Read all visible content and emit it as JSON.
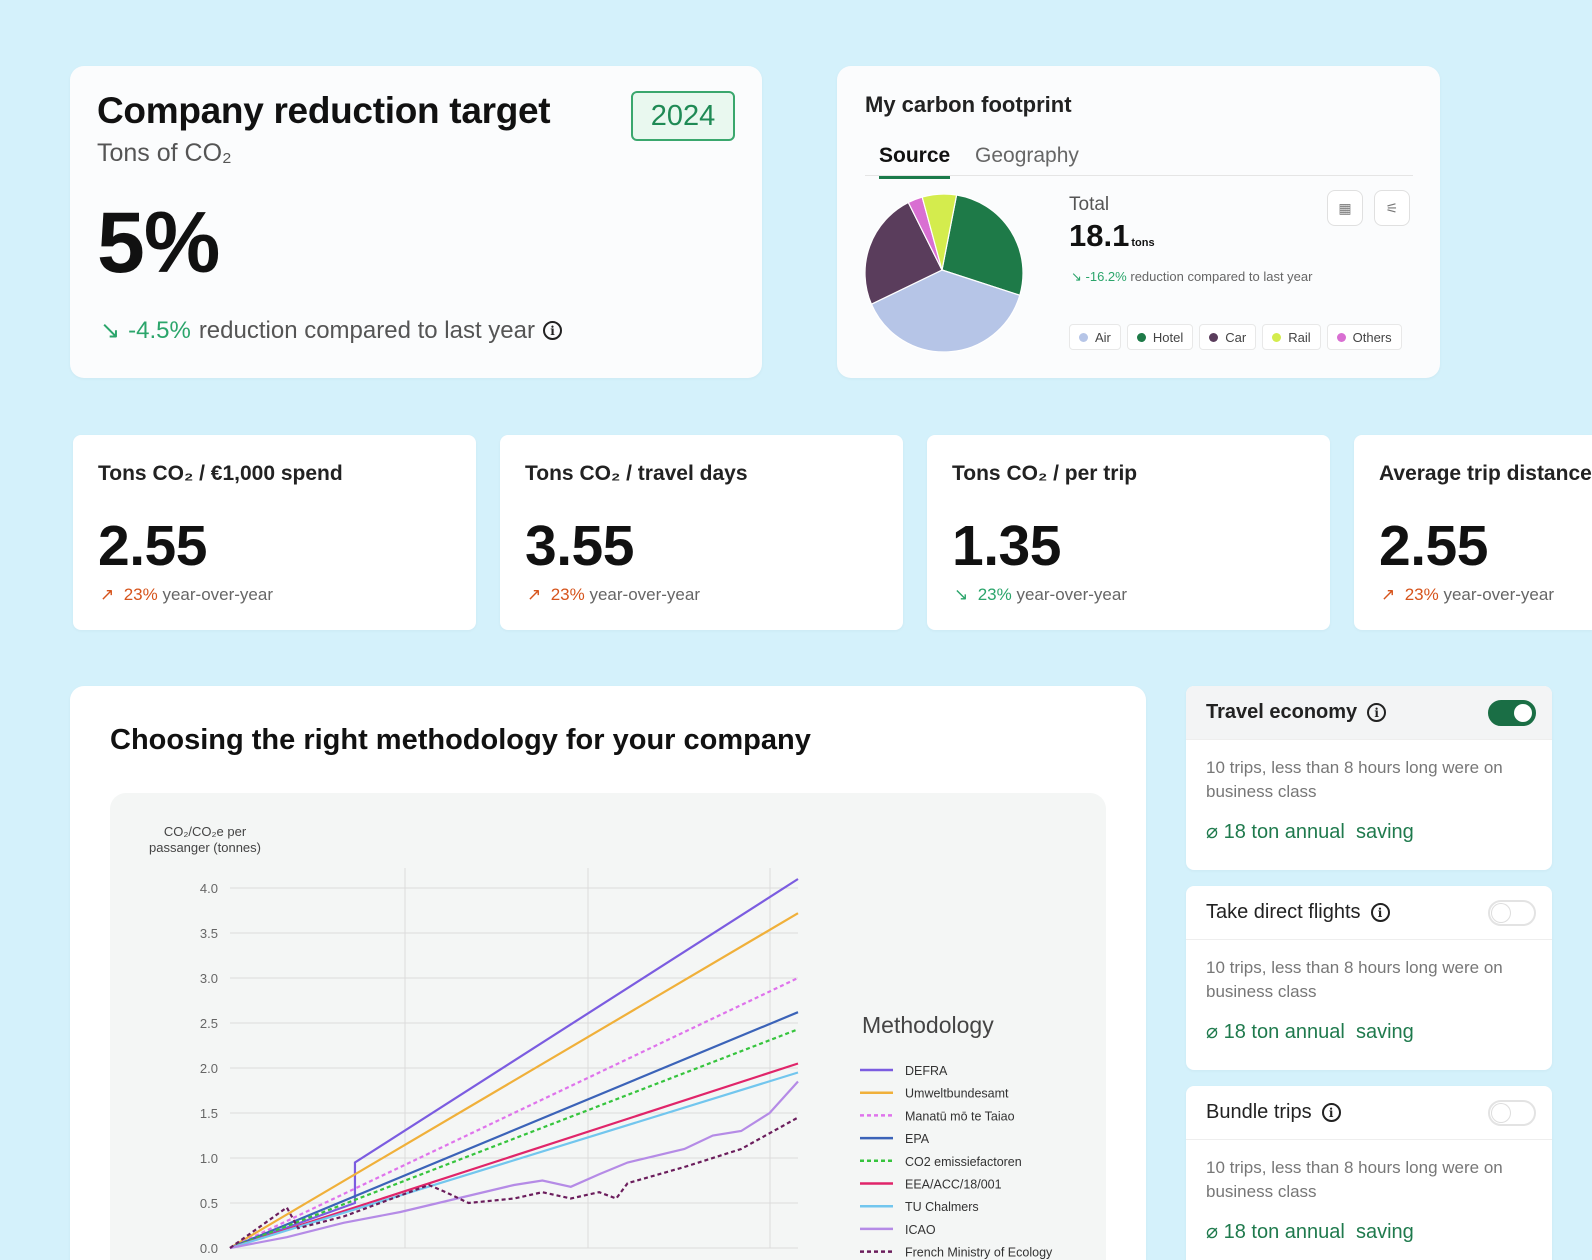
{
  "target": {
    "title": "Company reduction target",
    "subtitle": "Tons of CO₂",
    "year": "2024",
    "value": "5%",
    "delta_arrow": "↘",
    "delta_value": "-4.5%",
    "delta_text": "reduction compared to last year",
    "info_icon": "i"
  },
  "footprint": {
    "title": "My carbon footprint",
    "tabs": [
      "Source",
      "Geography"
    ],
    "total_label": "Total",
    "total_value": "18.1",
    "total_unit": "tons",
    "delta_arrow": "↘",
    "delta_value": "-16.2%",
    "delta_text": "reduction compared to last year",
    "calendar_icon": "▦",
    "filter_icon": "⚟",
    "slices": [
      {
        "name": "Air",
        "value": 39,
        "color": "#b6c5e7"
      },
      {
        "name": "Hotel",
        "value": 27,
        "color": "#1e7a48"
      },
      {
        "name": "Car",
        "value": 24,
        "color": "#5a3d5c"
      },
      {
        "name": "Rail",
        "value": 7,
        "color": "#d4ec4d"
      },
      {
        "name": "Others",
        "value": 3,
        "color": "#d96fd2"
      }
    ]
  },
  "metrics": [
    {
      "title": "Tons CO₂ / €1,000 spend",
      "value": "2.55",
      "arrow": "↗",
      "pct": "23%",
      "text": "year-over-year",
      "trend": "up"
    },
    {
      "title": "Tons CO₂ / travel days",
      "value": "3.55",
      "arrow": "↗",
      "pct": "23%",
      "text": "year-over-year",
      "trend": "up"
    },
    {
      "title": "Tons CO₂ / per trip",
      "value": "1.35",
      "arrow": "↘",
      "pct": "23%",
      "text": "year-over-year",
      "trend": "down"
    },
    {
      "title": "Average trip distance",
      "value": "2.55",
      "arrow": "↗",
      "pct": "23%",
      "text": "year-over-year",
      "trend": "up"
    }
  ],
  "methodology": {
    "title": "Choosing the right methodology for your company",
    "legend_title": "Methodology"
  },
  "chart_data": {
    "type": "line",
    "ylabel": "CO₂/CO₂e per passanger (tonnes)",
    "ylim": [
      0,
      4.0
    ],
    "yticks": [
      "0.0",
      "0.5",
      "1.0",
      "1.5",
      "2.0",
      "2.5",
      "3.0",
      "3.5",
      "4.0"
    ],
    "xlim": [
      0,
      10
    ],
    "series": [
      {
        "name": "DEFRA",
        "color": "#7b5ce0",
        "dash": false,
        "points": [
          [
            0,
            0
          ],
          [
            2.2,
            0.5
          ],
          [
            2.2,
            0.95
          ],
          [
            10,
            4.1
          ]
        ]
      },
      {
        "name": "Umweltbundesamt",
        "color": "#f0b03a",
        "dash": false,
        "points": [
          [
            0,
            0
          ],
          [
            10,
            3.72
          ]
        ]
      },
      {
        "name": "Manatū mō te Taiao",
        "color": "#df73ec",
        "dash": true,
        "points": [
          [
            0,
            0
          ],
          [
            10,
            3.0
          ]
        ]
      },
      {
        "name": "EPA",
        "color": "#3b63b8",
        "dash": false,
        "points": [
          [
            0,
            0
          ],
          [
            10,
            2.62
          ]
        ]
      },
      {
        "name": "CO2 emissiefactoren",
        "color": "#36c43d",
        "dash": true,
        "points": [
          [
            0,
            0
          ],
          [
            10,
            2.43
          ]
        ]
      },
      {
        "name": "EEA/ACC/18/001",
        "color": "#e0256a",
        "dash": false,
        "points": [
          [
            0,
            0
          ],
          [
            10,
            2.05
          ]
        ]
      },
      {
        "name": "TU Chalmers",
        "color": "#72c6ee",
        "dash": false,
        "points": [
          [
            0,
            0
          ],
          [
            10,
            1.95
          ]
        ]
      },
      {
        "name": "ICAO",
        "color": "#b58be6",
        "dash": false,
        "points": [
          [
            0,
            0
          ],
          [
            1,
            0.12
          ],
          [
            2,
            0.28
          ],
          [
            3,
            0.4
          ],
          [
            4,
            0.55
          ],
          [
            5,
            0.7
          ],
          [
            5.5,
            0.75
          ],
          [
            6,
            0.68
          ],
          [
            6.5,
            0.82
          ],
          [
            7,
            0.95
          ],
          [
            8,
            1.1
          ],
          [
            8.5,
            1.25
          ],
          [
            9,
            1.3
          ],
          [
            9.5,
            1.5
          ],
          [
            10,
            1.85
          ]
        ]
      },
      {
        "name": "French Ministry of Ecology",
        "color": "#6b1d5c",
        "dash": true,
        "points": [
          [
            0,
            0
          ],
          [
            1,
            0.45
          ],
          [
            1.2,
            0.22
          ],
          [
            2,
            0.35
          ],
          [
            3.5,
            0.7
          ],
          [
            3.8,
            0.62
          ],
          [
            4.2,
            0.5
          ],
          [
            5,
            0.55
          ],
          [
            5.5,
            0.62
          ],
          [
            6,
            0.55
          ],
          [
            6.5,
            0.62
          ],
          [
            6.8,
            0.55
          ],
          [
            7,
            0.72
          ],
          [
            8,
            0.9
          ],
          [
            9,
            1.1
          ],
          [
            10,
            1.45
          ]
        ]
      }
    ]
  },
  "recommendations": [
    {
      "title": "Travel economy",
      "on": true,
      "desc": "10 trips, less than 8 hours long were on business class",
      "saving_icon": "⌀",
      "saving": "18 ton annual  saving"
    },
    {
      "title": "Take direct flights",
      "on": false,
      "desc": "10 trips, less than 8 hours long were on business class",
      "saving_icon": "⌀",
      "saving": "18 ton annual  saving"
    },
    {
      "title": "Bundle trips",
      "on": false,
      "desc": "10 trips, less than 8 hours long were on business class",
      "saving_icon": "⌀",
      "saving": "18 ton annual  saving"
    }
  ]
}
